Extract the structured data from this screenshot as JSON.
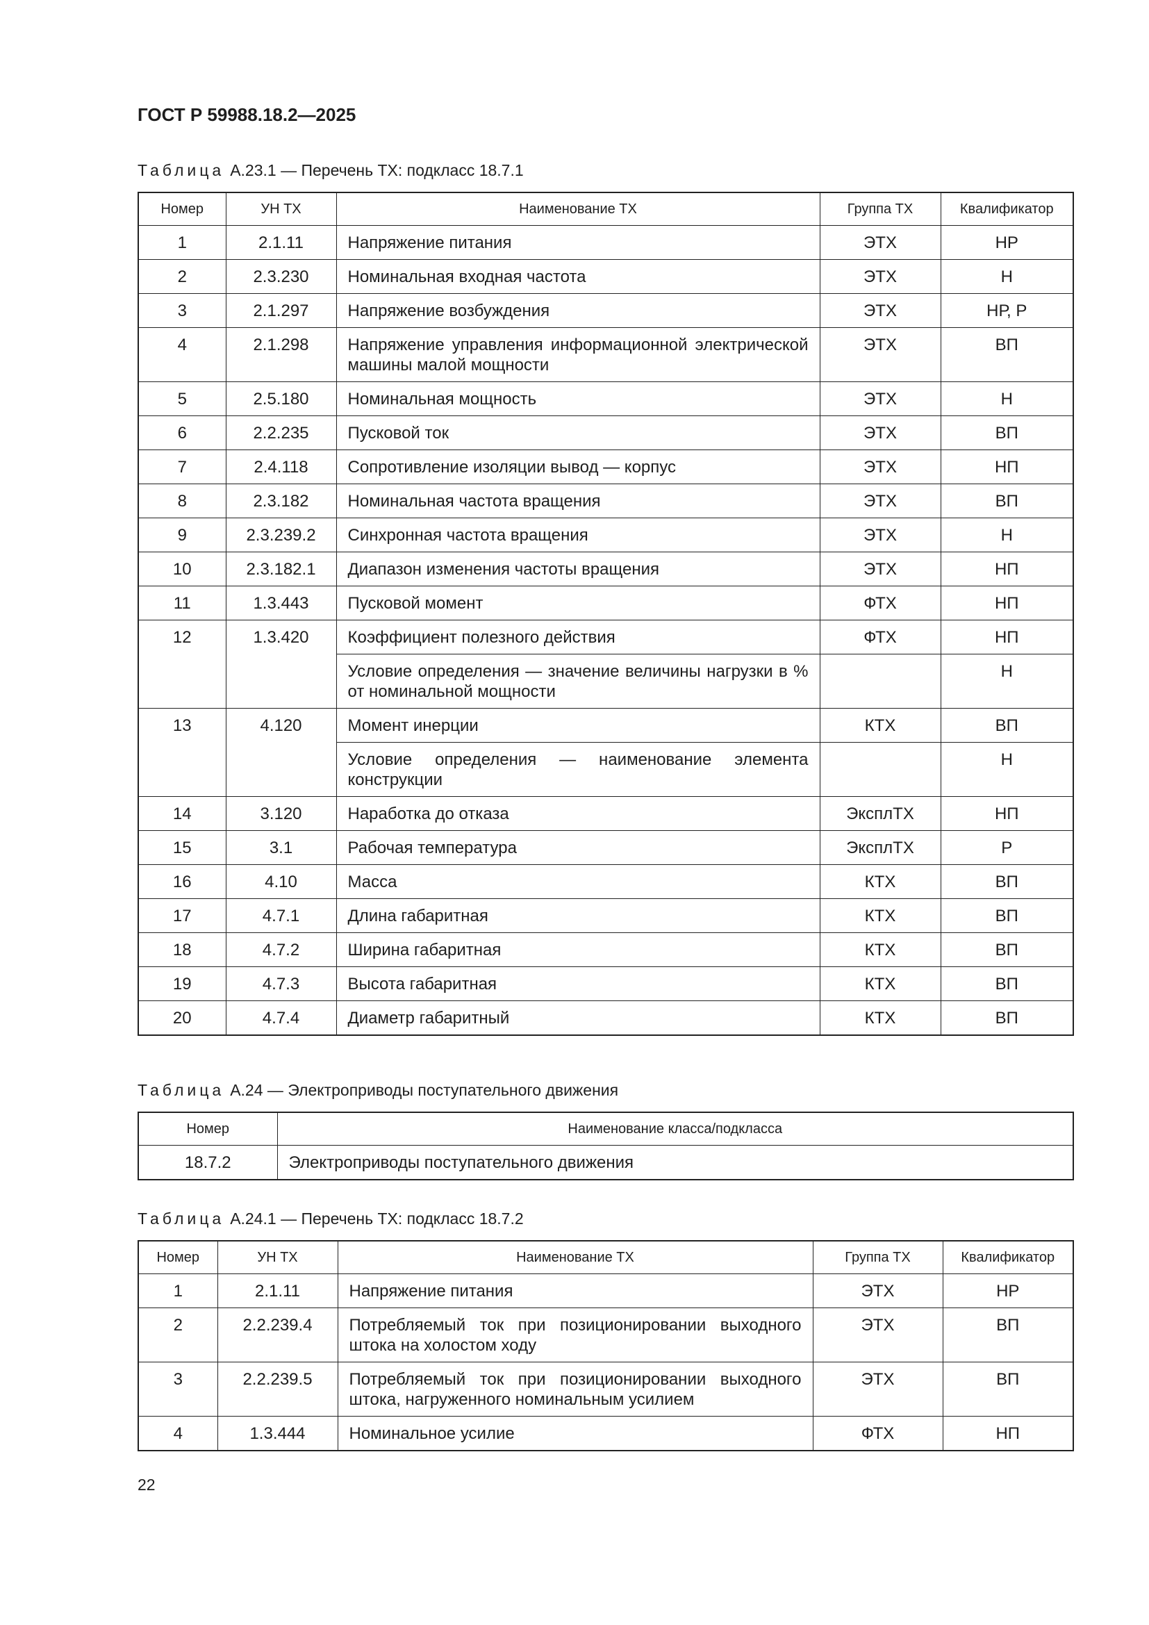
{
  "header": {
    "title": "ГОСТ Р 59988.18.2—2025"
  },
  "tables": [
    {
      "caption_label": "Таблица",
      "caption": "А.23.1 — Перечень ТХ: подкласс 18.7.1",
      "columns": [
        "Номер",
        "УН ТХ",
        "Наименование ТХ",
        "Группа ТХ",
        "Квалификатор"
      ],
      "rows": [
        {
          "cells": [
            "1",
            "2.1.11",
            "Напряжение питания",
            "ЭТХ",
            "НР"
          ]
        },
        {
          "cells": [
            "2",
            "2.3.230",
            "Номинальная входная частота",
            "ЭТХ",
            "Н"
          ]
        },
        {
          "cells": [
            "3",
            "2.1.297",
            "Напряжение возбуждения",
            "ЭТХ",
            "НР, Р"
          ]
        },
        {
          "cells": [
            "4",
            "2.1.298",
            "Напряжение управления информационной электрической машины малой мощности",
            "ЭТХ",
            "ВП"
          ]
        },
        {
          "cells": [
            "5",
            "2.5.180",
            "Номинальная мощность",
            "ЭТХ",
            "Н"
          ]
        },
        {
          "cells": [
            "6",
            "2.2.235",
            "Пусковой ток",
            "ЭТХ",
            "ВП"
          ]
        },
        {
          "cells": [
            "7",
            "2.4.118",
            "Сопротивление изоляции вывод — корпус",
            "ЭТХ",
            "НП"
          ]
        },
        {
          "cells": [
            "8",
            "2.3.182",
            "Номинальная частота вращения",
            "ЭТХ",
            "ВП"
          ]
        },
        {
          "cells": [
            "9",
            "2.3.239.2",
            "Синхронная частота вращения",
            "ЭТХ",
            "Н"
          ]
        },
        {
          "cells": [
            "10",
            "2.3.182.1",
            "Диапазон изменения частоты вращения",
            "ЭТХ",
            "НП"
          ]
        },
        {
          "cells": [
            "11",
            "1.3.443",
            "Пусковой момент",
            "ФТХ",
            "НП"
          ]
        },
        {
          "cells": [
            "12",
            "1.3.420",
            "Коэффициент полезного действия",
            "ФТХ",
            "НП"
          ],
          "condition": {
            "name": "Условие определения — значение величины нагрузки в % от номинальной мощности",
            "qualifier": "Н"
          }
        },
        {
          "cells": [
            "13",
            "4.120",
            "Момент инерции",
            "КТХ",
            "ВП"
          ],
          "condition": {
            "name": "Условие определения — наименование элемента конструкции",
            "qualifier": "Н"
          }
        },
        {
          "cells": [
            "14",
            "3.120",
            "Наработка до отказа",
            "ЭксплТХ",
            "НП"
          ]
        },
        {
          "cells": [
            "15",
            "3.1",
            "Рабочая температура",
            "ЭксплТХ",
            "Р"
          ]
        },
        {
          "cells": [
            "16",
            "4.10",
            "Масса",
            "КТХ",
            "ВП"
          ]
        },
        {
          "cells": [
            "17",
            "4.7.1",
            "Длина габаритная",
            "КТХ",
            "ВП"
          ]
        },
        {
          "cells": [
            "18",
            "4.7.2",
            "Ширина габаритная",
            "КТХ",
            "ВП"
          ]
        },
        {
          "cells": [
            "19",
            "4.7.3",
            "Высота габаритная",
            "КТХ",
            "ВП"
          ]
        },
        {
          "cells": [
            "20",
            "4.7.4",
            "Диаметр габаритный",
            "КТХ",
            "ВП"
          ]
        }
      ]
    },
    {
      "caption_label": "Таблица",
      "caption": "А.24 — Электроприводы поступательного движения",
      "columns": [
        "Номер",
        "Наименование класса/подкласса"
      ],
      "rows": [
        {
          "cells": [
            "18.7.2",
            "Электроприводы поступательного движения"
          ]
        }
      ]
    },
    {
      "caption_label": "Таблица",
      "caption": "А.24.1 — Перечень ТХ: подкласс 18.7.2",
      "columns": [
        "Номер",
        "УН ТХ",
        "Наименование ТХ",
        "Группа ТХ",
        "Квалификатор"
      ],
      "rows": [
        {
          "cells": [
            "1",
            "2.1.11",
            "Напряжение питания",
            "ЭТХ",
            "НР"
          ]
        },
        {
          "cells": [
            "2",
            "2.2.239.4",
            "Потребляемый ток при позиционировании выходного штока на холостом ходу",
            "ЭТХ",
            "ВП"
          ]
        },
        {
          "cells": [
            "3",
            "2.2.239.5",
            "Потребляемый ток при позиционировании выходного штока, нагруженного номинальным усилием",
            "ЭТХ",
            "ВП"
          ]
        },
        {
          "cells": [
            "4",
            "1.3.444",
            "Номинальное усилие",
            "ФТХ",
            "НП"
          ]
        }
      ]
    }
  ],
  "page_number": "22"
}
